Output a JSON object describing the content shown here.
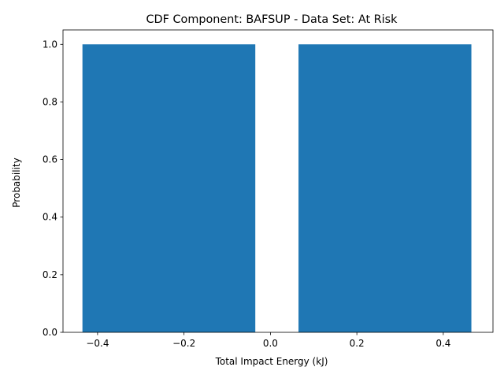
{
  "chart_data": {
    "type": "bar",
    "title": "CDF Component: BAFSUP - Data Set: At Risk",
    "xlabel": "Total Impact Energy (kJ)",
    "ylabel": "Probability",
    "xlim": [
      -0.48,
      0.515
    ],
    "ylim": [
      0,
      1.05
    ],
    "xticks": [
      -0.4,
      -0.2,
      0.0,
      0.2,
      0.4
    ],
    "xtick_labels": [
      "−0.4",
      "−0.2",
      "0.0",
      "0.2",
      "0.4"
    ],
    "yticks": [
      0.0,
      0.2,
      0.4,
      0.6,
      0.8,
      1.0
    ],
    "ytick_labels": [
      "0.0",
      "0.2",
      "0.4",
      "0.6",
      "0.8",
      "1.0"
    ],
    "bars": [
      {
        "x_start": -0.435,
        "x_end": -0.035,
        "value": 1.0
      },
      {
        "x_start": 0.065,
        "x_end": 0.465,
        "value": 1.0
      }
    ],
    "grid": false,
    "colors": {
      "bar": "#1f77b4",
      "axis": "#000000"
    }
  }
}
